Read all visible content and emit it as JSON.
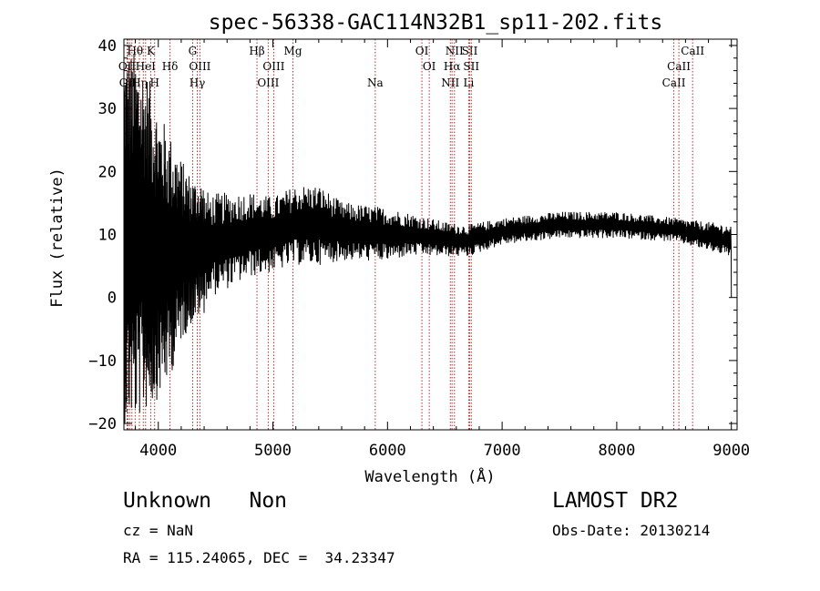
{
  "chart_data": {
    "type": "line",
    "title": "spec-56338-GAC114N32B1_sp11-202.fits",
    "xlabel": "Wavelength (Å)",
    "ylabel": "Flux (relative)",
    "xlim": [
      3700,
      9050
    ],
    "ylim": [
      -21,
      41
    ],
    "xticks": [
      4000,
      5000,
      6000,
      7000,
      8000,
      9000
    ],
    "xtick_labels": [
      "4000",
      "5000",
      "6000",
      "7000",
      "8000",
      "9000"
    ],
    "yticks": [
      -20,
      -10,
      0,
      10,
      20,
      30,
      40
    ],
    "ytick_labels": [
      "−20",
      "−10",
      "0",
      "10",
      "20",
      "30",
      "40"
    ],
    "line_color": "#000000",
    "marker_color": "#b03030",
    "envelope": [
      {
        "x": 3700,
        "lo": -20,
        "hi": 40
      },
      {
        "x": 3800,
        "lo": -20,
        "hi": 39
      },
      {
        "x": 3900,
        "lo": -18,
        "hi": 36
      },
      {
        "x": 4000,
        "lo": -16,
        "hi": 30
      },
      {
        "x": 4100,
        "lo": -13,
        "hi": 26
      },
      {
        "x": 4200,
        "lo": -7,
        "hi": 22
      },
      {
        "x": 4300,
        "lo": -4,
        "hi": 19
      },
      {
        "x": 4500,
        "lo": -1,
        "hi": 18
      },
      {
        "x": 4800,
        "lo": 2,
        "hi": 18
      },
      {
        "x": 5000,
        "lo": 3,
        "hi": 17
      },
      {
        "x": 5200,
        "lo": 4,
        "hi": 19
      },
      {
        "x": 5400,
        "lo": 4,
        "hi": 19
      },
      {
        "x": 5600,
        "lo": 5,
        "hi": 16
      },
      {
        "x": 6000,
        "lo": 5,
        "hi": 15
      },
      {
        "x": 6200,
        "lo": 6,
        "hi": 14
      },
      {
        "x": 6500,
        "lo": 6,
        "hi": 12.5
      },
      {
        "x": 6700,
        "lo": 6,
        "hi": 12
      },
      {
        "x": 7000,
        "lo": 8,
        "hi": 13
      },
      {
        "x": 7500,
        "lo": 9,
        "hi": 14
      },
      {
        "x": 8000,
        "lo": 9,
        "hi": 14
      },
      {
        "x": 8500,
        "lo": 8.5,
        "hi": 13
      },
      {
        "x": 9000,
        "lo": 6,
        "hi": 12
      }
    ],
    "spectral_lines": [
      {
        "x": 3728,
        "label": "OII",
        "row": 2
      },
      {
        "x": 3735,
        "label": "OII",
        "row": 3
      },
      {
        "x": 3750,
        "label": "",
        "row": 0
      },
      {
        "x": 3770,
        "label": "",
        "row": 0
      },
      {
        "x": 3798,
        "label": "Hθ",
        "row": 1
      },
      {
        "x": 3835,
        "label": "Hη",
        "row": 3
      },
      {
        "x": 3869,
        "label": "",
        "row": 0
      },
      {
        "x": 3889,
        "label": "HeI",
        "row": 2
      },
      {
        "x": 3934,
        "label": "K",
        "row": 1
      },
      {
        "x": 3968,
        "label": "H",
        "row": 3
      },
      {
        "x": 4102,
        "label": "Hδ",
        "row": 2
      },
      {
        "x": 4300,
        "label": "G",
        "row": 1
      },
      {
        "x": 4340,
        "label": "Hγ",
        "row": 3
      },
      {
        "x": 4363,
        "label": "OIII",
        "row": 2
      },
      {
        "x": 4861,
        "label": "Hβ",
        "row": 1
      },
      {
        "x": 4959,
        "label": "OIII",
        "row": 3
      },
      {
        "x": 5007,
        "label": "OIII",
        "row": 2
      },
      {
        "x": 5175,
        "label": "Mg",
        "row": 1
      },
      {
        "x": 5893,
        "label": "Na",
        "row": 3
      },
      {
        "x": 6300,
        "label": "OI",
        "row": 1
      },
      {
        "x": 6364,
        "label": "OI",
        "row": 2
      },
      {
        "x": 6548,
        "label": "NII",
        "row": 3
      },
      {
        "x": 6563,
        "label": "Hα",
        "row": 2
      },
      {
        "x": 6584,
        "label": "NII",
        "row": 1
      },
      {
        "x": 6708,
        "label": "Li",
        "row": 3
      },
      {
        "x": 6717,
        "label": "SII",
        "row": 1
      },
      {
        "x": 6731,
        "label": "SII",
        "row": 2
      },
      {
        "x": 8498,
        "label": "CaII",
        "row": 3
      },
      {
        "x": 8542,
        "label": "CaII",
        "row": 2
      },
      {
        "x": 8662,
        "label": "CaII",
        "row": 1
      }
    ]
  },
  "footer": {
    "class_text": "Unknown   Non",
    "cz_text": "cz = NaN",
    "radec_text": "RA = 115.24065, DEC =  34.23347",
    "survey_text": "LAMOST DR2",
    "obsdate_text": "Obs-Date: 20130214"
  }
}
